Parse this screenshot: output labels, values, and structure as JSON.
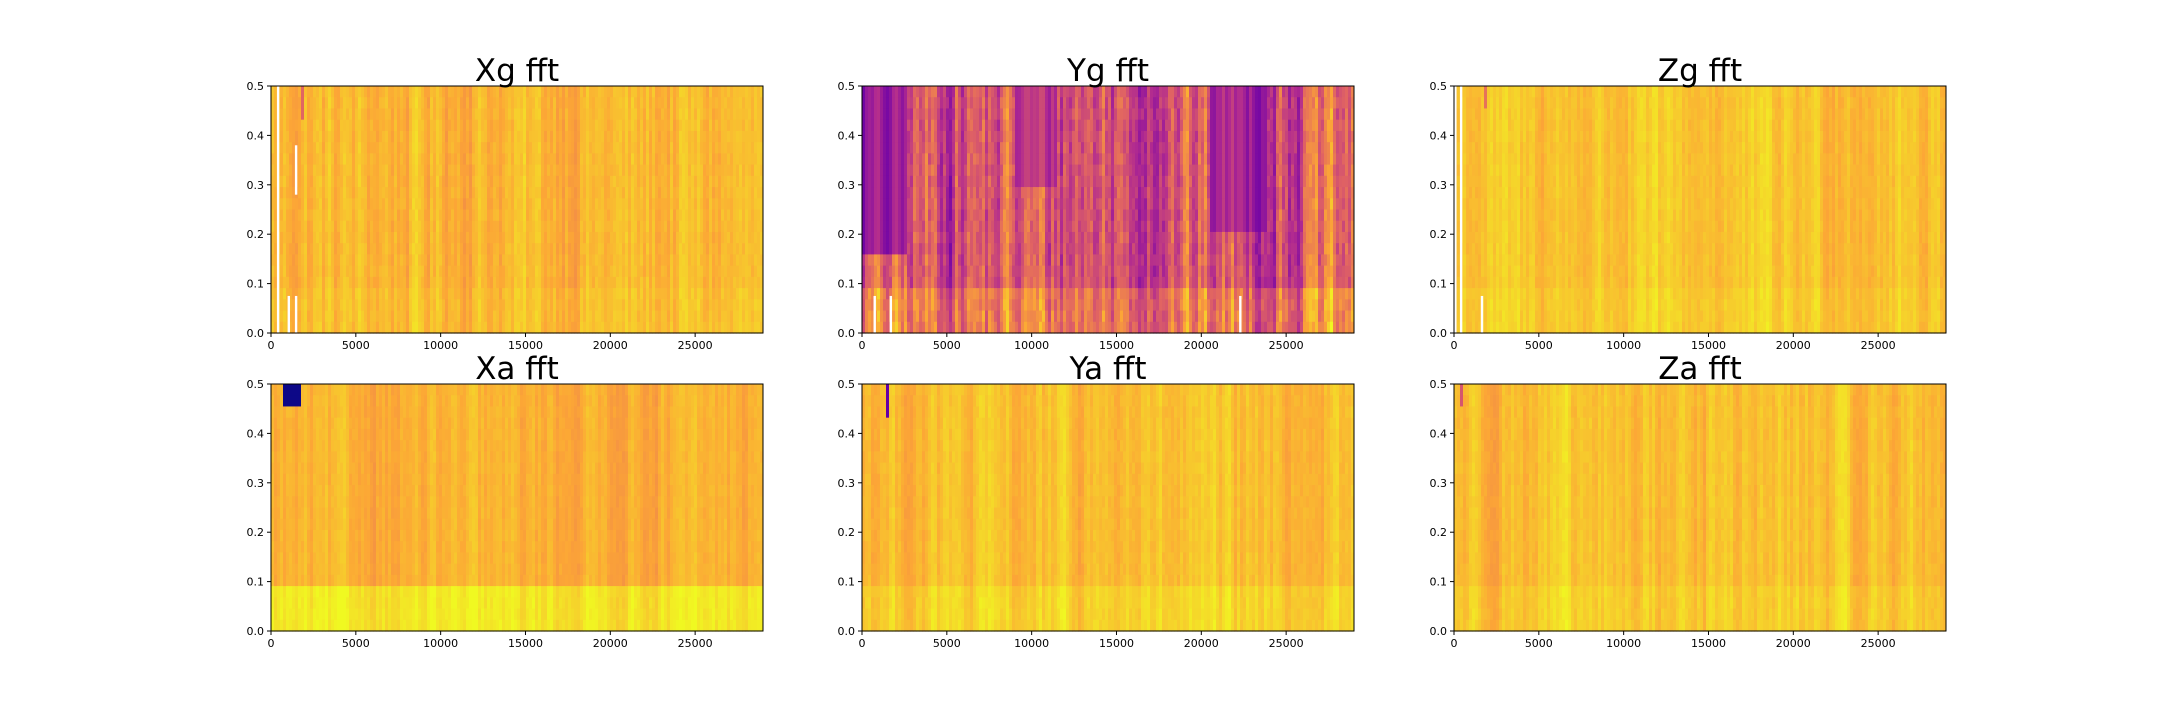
{
  "figure": {
    "background": "#ffffff",
    "colormap": "plasma",
    "colormap_stops": [
      "#0d0887",
      "#6a00a8",
      "#b12a90",
      "#e16462",
      "#fca636",
      "#f0f921"
    ]
  },
  "chart_data": [
    {
      "type": "heatmap",
      "title": "Xg fft",
      "xlim": [
        0,
        29000
      ],
      "ylim": [
        0,
        0.5
      ],
      "xticks": [
        0,
        5000,
        10000,
        15000,
        20000,
        25000
      ],
      "xtick_labels": [
        "0",
        "5000",
        "10000",
        "15000",
        "20000",
        "25000"
      ],
      "yticks": [
        0.0,
        0.1,
        0.2,
        0.3,
        0.4,
        0.5
      ],
      "ytick_labels": [
        "0.0",
        "0.1",
        "0.2",
        "0.3",
        "0.4",
        "0.5"
      ],
      "mean_level": 0.84,
      "variation": 0.07,
      "low_band_boost": 0.02,
      "gaps": [
        {
          "x": 420,
          "y0": 0.0,
          "y1": 0.5
        },
        {
          "x": 1050,
          "y0": 0.0,
          "y1": 0.075
        },
        {
          "x": 1480,
          "y0": 0.0,
          "y1": 0.075
        },
        {
          "x": 1480,
          "y0": 0.28,
          "y1": 0.38
        }
      ],
      "patches": [
        {
          "x0": 1800,
          "x1": 2000,
          "y0": 0.44,
          "y1": 0.5,
          "level": 0.6
        }
      ]
    },
    {
      "type": "heatmap",
      "title": "Yg fft",
      "xlim": [
        0,
        29000
      ],
      "ylim": [
        0,
        0.5
      ],
      "xticks": [
        0,
        5000,
        10000,
        15000,
        20000,
        25000
      ],
      "xtick_labels": [
        "0",
        "5000",
        "10000",
        "15000",
        "20000",
        "25000"
      ],
      "yticks": [
        0.0,
        0.1,
        0.2,
        0.3,
        0.4,
        0.5
      ],
      "ytick_labels": [
        "0.0",
        "0.1",
        "0.2",
        "0.3",
        "0.4",
        "0.5"
      ],
      "mean_level": 0.55,
      "variation": 0.2,
      "low_band_boost": 0.12,
      "gaps": [
        {
          "x": 750,
          "y0": 0.0,
          "y1": 0.075
        },
        {
          "x": 1700,
          "y0": 0.0,
          "y1": 0.075
        },
        {
          "x": 22300,
          "y0": 0.0,
          "y1": 0.075
        }
      ],
      "patches": [
        {
          "x0": 0,
          "x1": 2600,
          "y0": 0.15,
          "y1": 0.5,
          "level": 0.3
        },
        {
          "x0": 20500,
          "x1": 23800,
          "y0": 0.2,
          "y1": 0.5,
          "level": 0.38
        },
        {
          "x0": 9000,
          "x1": 11500,
          "y0": 0.3,
          "y1": 0.5,
          "level": 0.42
        }
      ]
    },
    {
      "type": "heatmap",
      "title": "Zg fft",
      "xlim": [
        0,
        29000
      ],
      "ylim": [
        0,
        0.5
      ],
      "xticks": [
        0,
        5000,
        10000,
        15000,
        20000,
        25000
      ],
      "xtick_labels": [
        "0",
        "5000",
        "10000",
        "15000",
        "20000",
        "25000"
      ],
      "yticks": [
        0.0,
        0.1,
        0.2,
        0.3,
        0.4,
        0.5
      ],
      "ytick_labels": [
        "0.0",
        "0.1",
        "0.2",
        "0.3",
        "0.4",
        "0.5"
      ],
      "mean_level": 0.87,
      "variation": 0.06,
      "low_band_boost": 0.02,
      "gaps": [
        {
          "x": 80,
          "y0": 0.0,
          "y1": 0.5
        },
        {
          "x": 420,
          "y0": 0.0,
          "y1": 0.5
        },
        {
          "x": 1650,
          "y0": 0.0,
          "y1": 0.075
        }
      ],
      "patches": [
        {
          "x0": 1700,
          "x1": 1900,
          "y0": 0.45,
          "y1": 0.5,
          "level": 0.65
        }
      ]
    },
    {
      "type": "heatmap",
      "title": "Xa fft",
      "xlim": [
        0,
        29000
      ],
      "ylim": [
        0,
        0.5
      ],
      "xticks": [
        0,
        5000,
        10000,
        15000,
        20000,
        25000
      ],
      "xtick_labels": [
        "0",
        "5000",
        "10000",
        "15000",
        "20000",
        "25000"
      ],
      "yticks": [
        0.0,
        0.1,
        0.2,
        0.3,
        0.4,
        0.5
      ],
      "ytick_labels": [
        "0.0",
        "0.1",
        "0.2",
        "0.3",
        "0.4",
        "0.5"
      ],
      "mean_level": 0.82,
      "variation": 0.05,
      "low_band_boost": 0.13,
      "gaps": [],
      "patches": [
        {
          "x0": 650,
          "x1": 1750,
          "y0": 0.465,
          "y1": 0.5,
          "level": 0.0
        },
        {
          "x0": 650,
          "x1": 1750,
          "y0": 0.445,
          "y1": 0.465,
          "level": 0.45
        }
      ]
    },
    {
      "type": "heatmap",
      "title": "Ya fft",
      "xlim": [
        0,
        29000
      ],
      "ylim": [
        0,
        0.5
      ],
      "xticks": [
        0,
        5000,
        10000,
        15000,
        20000,
        25000
      ],
      "xtick_labels": [
        "0",
        "5000",
        "10000",
        "15000",
        "20000",
        "25000"
      ],
      "yticks": [
        0.0,
        0.1,
        0.2,
        0.3,
        0.4,
        0.5
      ],
      "ytick_labels": [
        "0.0",
        "0.1",
        "0.2",
        "0.3",
        "0.4",
        "0.5"
      ],
      "mean_level": 0.85,
      "variation": 0.06,
      "low_band_boost": 0.05,
      "gaps": [],
      "patches": [
        {
          "x0": 1400,
          "x1": 1600,
          "y0": 0.44,
          "y1": 0.5,
          "level": 0.2
        }
      ]
    },
    {
      "type": "heatmap",
      "title": "Za fft",
      "xlim": [
        0,
        29000
      ],
      "ylim": [
        0,
        0.5
      ],
      "xticks": [
        0,
        5000,
        10000,
        15000,
        20000,
        25000
      ],
      "xtick_labels": [
        "0",
        "5000",
        "10000",
        "15000",
        "20000",
        "25000"
      ],
      "yticks": [
        0.0,
        0.1,
        0.2,
        0.3,
        0.4,
        0.5
      ],
      "ytick_labels": [
        "0.0",
        "0.1",
        "0.2",
        "0.3",
        "0.4",
        "0.5"
      ],
      "mean_level": 0.86,
      "variation": 0.06,
      "low_band_boost": 0.03,
      "gaps": [],
      "patches": [
        {
          "x0": 350,
          "x1": 500,
          "y0": 0.45,
          "y1": 0.5,
          "level": 0.55
        }
      ]
    }
  ]
}
